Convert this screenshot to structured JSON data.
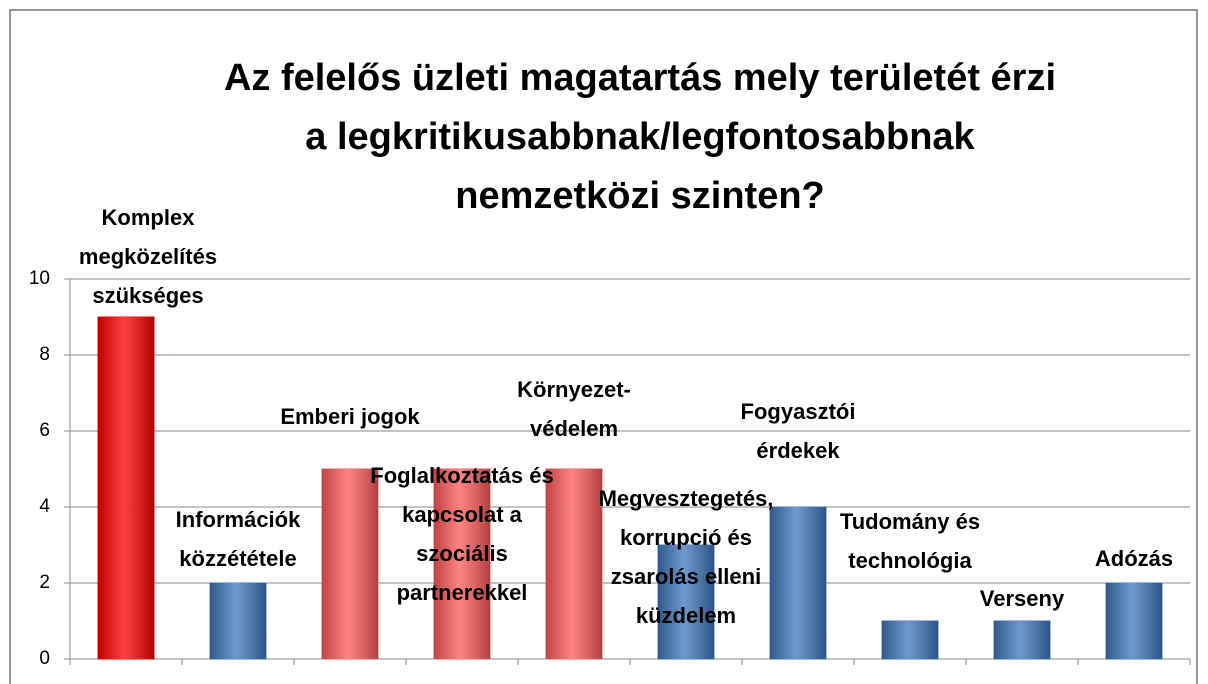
{
  "chart_data": {
    "type": "bar",
    "title": [
      "Az  felelős üzleti magatartás mely területét érzi",
      "a legkritikusabbnak/legfontosabbnak",
      "nemzetközi szinten?"
    ],
    "categories": [
      [
        "Komplex",
        "megközelítés",
        "szükséges"
      ],
      [
        "Információk",
        "közzététele"
      ],
      [
        "Emberi jogok"
      ],
      [
        "Foglalkoztatás és",
        "kapcsolat a",
        "szociális",
        "partnerekkel"
      ],
      [
        "Környezet-",
        "védelem"
      ],
      [
        "Megvesztegetés,",
        "korrupció és",
        "zsarolás elleni",
        "küzdelem"
      ],
      [
        "Fogyasztói",
        "érdekek"
      ],
      [
        "Tudomány és",
        "technológia"
      ],
      [
        "Verseny"
      ],
      [
        "Adózás"
      ]
    ],
    "values": [
      9,
      2,
      5,
      5,
      5,
      3,
      4,
      1,
      1,
      2
    ],
    "colors": [
      "#ff0000",
      "#3f77bd",
      "#ff5a5a",
      "#ff5a5a",
      "#ff5a5a",
      "#3f77bd",
      "#3f77bd",
      "#3f77bd",
      "#3f77bd",
      "#3f77bd"
    ],
    "ylim": [
      0,
      10
    ],
    "yticks": [
      0,
      2,
      4,
      6,
      8,
      10
    ],
    "grid": true
  }
}
